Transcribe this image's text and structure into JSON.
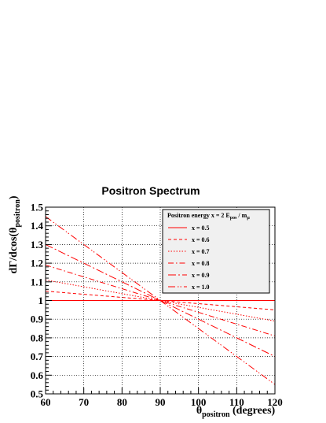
{
  "chart_data": {
    "type": "line",
    "title": "Positron Spectrum",
    "xlabel": {
      "main": "θ",
      "sub": "positron",
      "suffix": " (degrees)"
    },
    "ylabel": {
      "prefix": "dΓ/dcos(θ",
      "sub": "positron",
      "suffix": ")"
    },
    "xlim": [
      60,
      120
    ],
    "ylim": [
      0.5,
      1.5
    ],
    "x_ticks": [
      "60",
      "70",
      "80",
      "90",
      "100",
      "110",
      "120"
    ],
    "y_ticks": [
      "0.5",
      "0.6",
      "0.7",
      "0.8",
      "0.9",
      "1",
      "1.1",
      "1.2",
      "1.3",
      "1.4",
      "1.5"
    ],
    "grid": true,
    "legend": {
      "position": "top-right",
      "title": {
        "prefix": "Positron energy x = 2 E",
        "sub1": "pos",
        "mid": " / m",
        "sub2": "μ"
      },
      "entries": [
        "x = 0.5",
        "x = 0.6",
        "x = 0.7",
        "x = 0.8",
        "x = 0.9",
        "x = 1.0"
      ]
    },
    "series": [
      {
        "name": "x = 0.5",
        "dash": "solid",
        "x": [
          60,
          120
        ],
        "y": [
          1.0,
          1.0
        ]
      },
      {
        "name": "x = 0.6",
        "dash": "dashed",
        "x": [
          60,
          120
        ],
        "y": [
          1.05,
          0.95
        ]
      },
      {
        "name": "x = 0.7",
        "dash": "dotted",
        "x": [
          60,
          120
        ],
        "y": [
          1.11,
          0.89
        ]
      },
      {
        "name": "x = 0.8",
        "dash": "dashdot",
        "x": [
          60,
          120
        ],
        "y": [
          1.19,
          0.81
        ]
      },
      {
        "name": "x = 0.9",
        "dash": "longdash",
        "x": [
          60,
          120
        ],
        "y": [
          1.3,
          0.7
        ]
      },
      {
        "name": "x = 1.0",
        "dash": "dashdotdot",
        "x": [
          60,
          120
        ],
        "y": [
          1.45,
          0.55
        ]
      }
    ],
    "color": "#ff0000"
  }
}
